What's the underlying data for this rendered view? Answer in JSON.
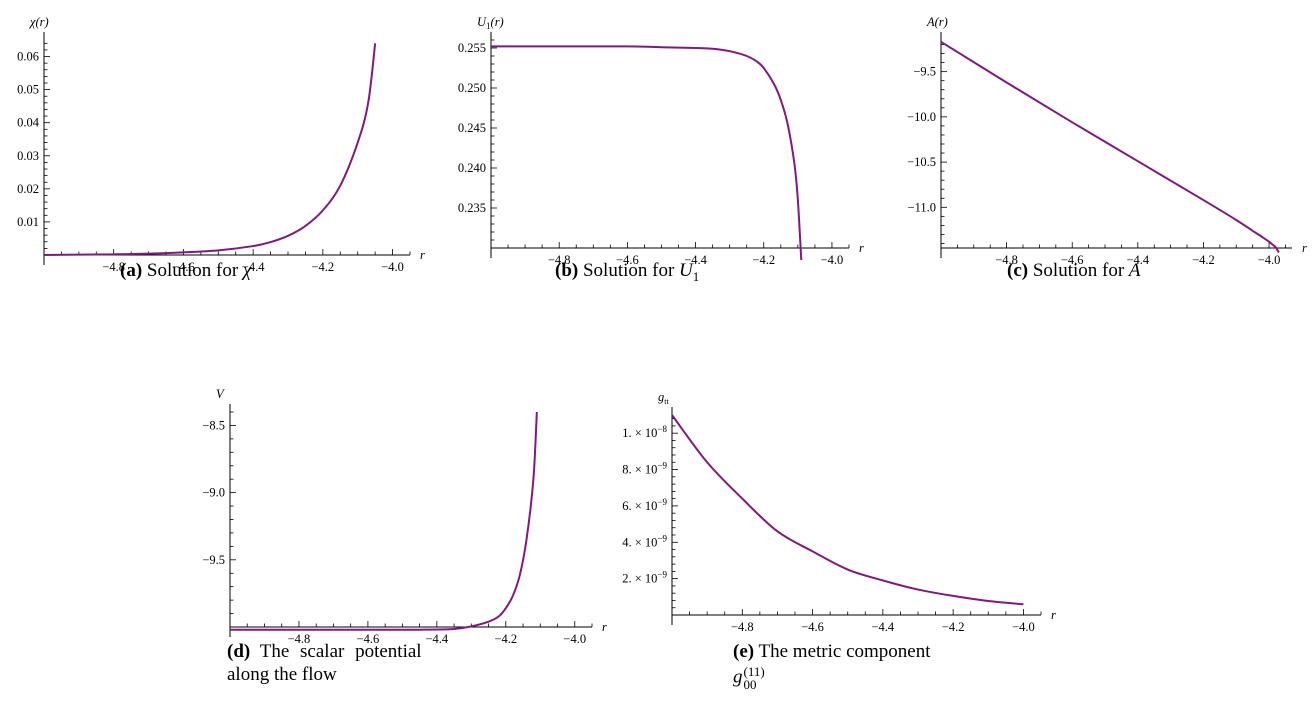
{
  "chart_data": [
    {
      "id": "a",
      "type": "line",
      "ylabel": "χ(r)",
      "xlabel": "r",
      "xlim": [
        -5.0,
        -3.95
      ],
      "ylim": [
        0.0,
        0.065
      ],
      "x_ticks": [
        -4.8,
        -4.6,
        -4.4,
        -4.2,
        -4.0
      ],
      "x_tick_labels": [
        "−4.8",
        "−4.6",
        "−4.4",
        "−4.2",
        "−4.0"
      ],
      "y_ticks": [
        0.01,
        0.02,
        0.03,
        0.04,
        0.05,
        0.06
      ],
      "y_tick_labels": [
        "0.01",
        "0.02",
        "0.03",
        "0.04",
        "0.05",
        "0.06"
      ],
      "x_axis_at_y": 0.0,
      "y_axis_at_x": -5.0,
      "series": [
        {
          "x": [
            -5.0,
            -4.9,
            -4.8,
            -4.7,
            -4.6,
            -4.5,
            -4.4,
            -4.35,
            -4.3,
            -4.25,
            -4.2,
            -4.15,
            -4.1,
            -4.07,
            -4.05
          ],
          "y": [
            0.0,
            0.0001,
            0.0002,
            0.0004,
            0.0008,
            0.0014,
            0.0027,
            0.0039,
            0.0058,
            0.0088,
            0.0135,
            0.021,
            0.034,
            0.046,
            0.064
          ]
        }
      ],
      "caption": {
        "tag": "(a)",
        "text": "Solution for",
        "symbol": "χ"
      }
    },
    {
      "id": "b",
      "type": "line",
      "ylabel": "U1(r)",
      "xlabel": "r",
      "xlim": [
        -5.0,
        -3.95
      ],
      "ylim": [
        0.23,
        0.256
      ],
      "x_ticks": [
        -4.8,
        -4.6,
        -4.4,
        -4.2,
        -4.0
      ],
      "x_tick_labels": [
        "−4.8",
        "−4.6",
        "−4.4",
        "−4.2",
        "−4.0"
      ],
      "y_ticks": [
        0.235,
        0.24,
        0.245,
        0.25,
        0.255
      ],
      "y_tick_labels": [
        "0.235",
        "0.240",
        "0.245",
        "0.250",
        "0.255"
      ],
      "x_axis_at_y": 0.23,
      "y_axis_at_x": -5.0,
      "series": [
        {
          "x": [
            -5.0,
            -4.8,
            -4.6,
            -4.5,
            -4.4,
            -4.35,
            -4.3,
            -4.25,
            -4.22,
            -4.2,
            -4.17,
            -4.15,
            -4.13,
            -4.11,
            -4.1,
            -4.09
          ],
          "y": [
            0.2552,
            0.2552,
            0.2552,
            0.2551,
            0.255,
            0.2549,
            0.2546,
            0.254,
            0.2533,
            0.2525,
            0.2505,
            0.2485,
            0.2455,
            0.2405,
            0.236,
            0.2285
          ]
        }
      ],
      "caption": {
        "tag": "(b)",
        "text": "Solution for",
        "symbol": "U",
        "symbol_sub": "1"
      }
    },
    {
      "id": "c",
      "type": "line",
      "ylabel": "A(r)",
      "xlabel": "r",
      "xlim": [
        -5.0,
        -3.93
      ],
      "ylim": [
        -11.45,
        -9.15
      ],
      "x_ticks": [
        -4.8,
        -4.6,
        -4.4,
        -4.2,
        -4.0
      ],
      "x_tick_labels": [
        "−4.8",
        "−4.6",
        "−4.4",
        "−4.2",
        "−4.0"
      ],
      "y_ticks": [
        -11.0,
        -10.5,
        -10.0,
        -9.5
      ],
      "y_tick_labels": [
        "−11.0",
        "−10.5",
        "−10.0",
        "−9.5"
      ],
      "x_axis_at_y": -11.45,
      "y_axis_at_x": -5.0,
      "series": [
        {
          "x": [
            -5.0,
            -4.8,
            -4.6,
            -4.4,
            -4.2,
            -4.1,
            -4.05,
            -4.02,
            -4.0,
            -3.99,
            -3.98,
            -3.975,
            -3.97
          ],
          "y": [
            -9.17,
            -9.62,
            -10.06,
            -10.49,
            -10.92,
            -11.14,
            -11.26,
            -11.33,
            -11.38,
            -11.41,
            -11.44,
            -11.47,
            -11.5
          ]
        }
      ],
      "caption": {
        "tag": "(c)",
        "text": "Solution for",
        "symbol": "A"
      }
    },
    {
      "id": "d",
      "type": "line",
      "ylabel": "V",
      "xlabel": "r",
      "xlim": [
        -5.0,
        -3.95
      ],
      "ylim": [
        -10.0,
        -8.4
      ],
      "x_ticks": [
        -4.8,
        -4.6,
        -4.4,
        -4.2,
        -4.0
      ],
      "x_tick_labels": [
        "−4.8",
        "−4.6",
        "−4.4",
        "−4.2",
        "−4.0"
      ],
      "y_ticks": [
        -9.5,
        -9.0,
        -8.5
      ],
      "y_tick_labels": [
        "−9.5",
        "−9.0",
        "−8.5"
      ],
      "x_axis_at_y": -10.0,
      "y_axis_at_x": -5.0,
      "series": [
        {
          "x": [
            -5.0,
            -4.8,
            -4.6,
            -4.45,
            -4.35,
            -4.3,
            -4.25,
            -4.22,
            -4.2,
            -4.18,
            -4.16,
            -4.14,
            -4.12,
            -4.11
          ],
          "y": [
            -10.02,
            -10.02,
            -10.02,
            -10.02,
            -10.015,
            -9.995,
            -9.96,
            -9.92,
            -9.86,
            -9.77,
            -9.62,
            -9.35,
            -8.9,
            -8.4
          ]
        }
      ],
      "caption": {
        "tag": "(d)",
        "line1": "The scalar potential",
        "line2": "along the flow"
      }
    },
    {
      "id": "e",
      "type": "line",
      "ylabel": "gtt",
      "xlabel": "r",
      "xlim": [
        -5.0,
        -3.95
      ],
      "ylim": [
        0.0,
        1.1e-08
      ],
      "x_ticks": [
        -4.8,
        -4.6,
        -4.4,
        -4.2,
        -4.0
      ],
      "x_tick_labels": [
        "−4.8",
        "−4.6",
        "−4.4",
        "−4.2",
        "−4.0"
      ],
      "y_ticks": [
        2e-09,
        4e-09,
        6e-09,
        8e-09,
        1e-08
      ],
      "y_tick_labels": [
        "2.×10⁻⁹",
        "4.×10⁻⁹",
        "6.×10⁻⁹",
        "8.×10⁻⁹",
        "1.×10⁻⁸"
      ],
      "x_axis_at_y": 0.0,
      "y_axis_at_x": -5.0,
      "series": [
        {
          "x": [
            -5.0,
            -4.9,
            -4.8,
            -4.7,
            -4.6,
            -4.5,
            -4.4,
            -4.3,
            -4.2,
            -4.1,
            -4.0
          ],
          "y": [
            1.1e-08,
            8.4e-09,
            6.4e-09,
            4.6e-09,
            3.5e-09,
            2.5e-09,
            1.9e-09,
            1.4e-09,
            1.05e-09,
            7.7e-10,
            5.9e-10
          ]
        }
      ],
      "caption": {
        "tag": "(e)",
        "line1": "The metric component",
        "symbol": "g",
        "sub": "00",
        "sup": "(11)"
      }
    }
  ]
}
